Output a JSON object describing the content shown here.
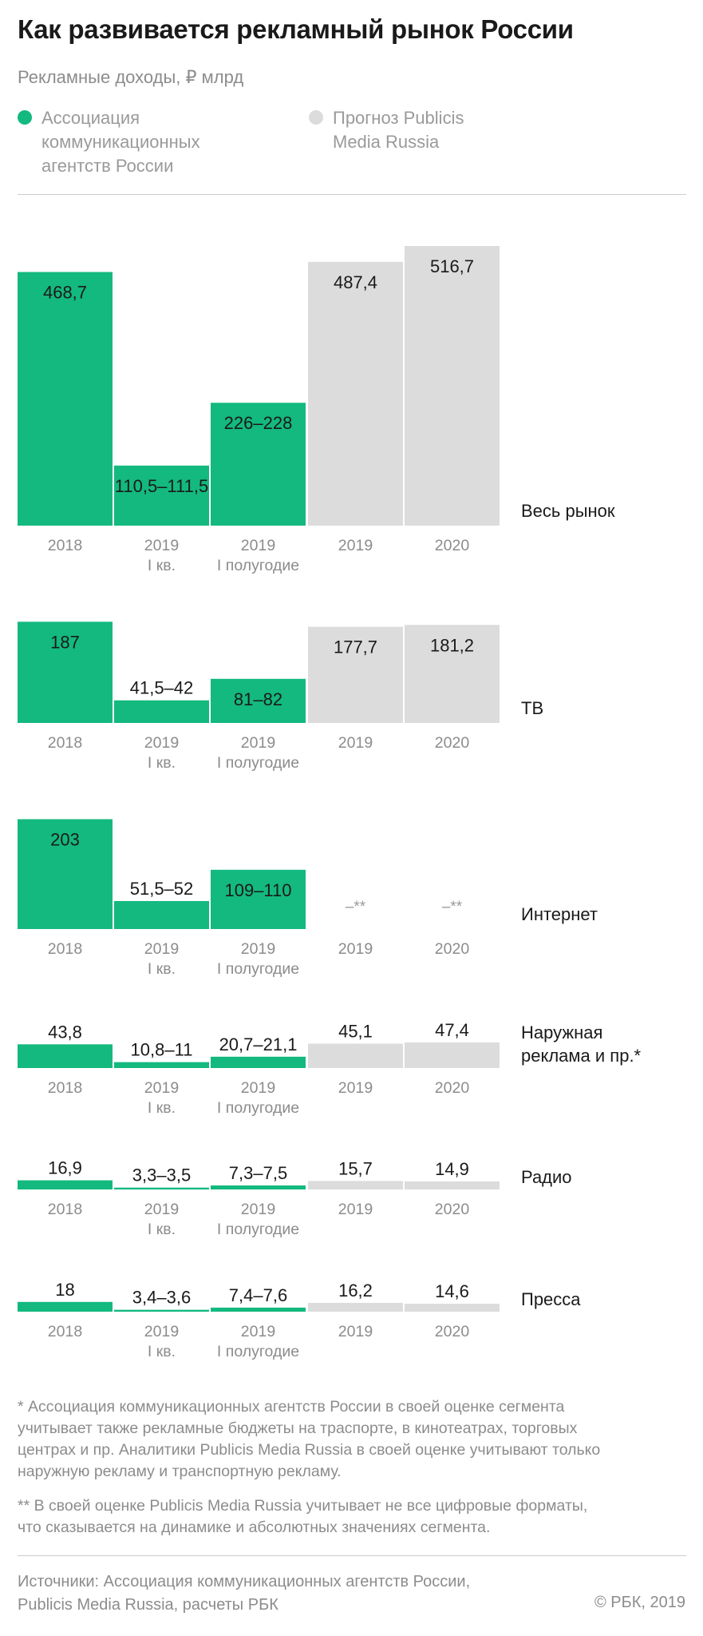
{
  "title": "Как развивается рекламный рынок России",
  "subtitle": "Рекламные доходы, ₽ млрд",
  "legend": [
    {
      "label": "Ассоциация\nкоммуникационных\nагентств России",
      "color": "#13b97f"
    },
    {
      "label": "Прогноз Publicis\nMedia Russia",
      "color": "#dcdcdc"
    }
  ],
  "chart_data": [
    {
      "type": "bar",
      "title": "Весь рынок",
      "categories": [
        "2018",
        "2019 I кв.",
        "2019 I полугодие",
        "2019",
        "2020"
      ],
      "tick_labels": [
        [
          "2018"
        ],
        [
          "2019",
          "I кв."
        ],
        [
          "2019",
          "I полугодие"
        ],
        [
          "2019"
        ],
        [
          "2020"
        ]
      ],
      "values": [
        468.7,
        111,
        227,
        487.4,
        516.7
      ],
      "value_labels": [
        "468,7",
        "110,5–111,5",
        "226–228",
        "487,4",
        "516,7"
      ],
      "series_source": [
        "АКАР",
        "АКАР",
        "АКАР",
        "Publicis",
        "Publicis"
      ]
    },
    {
      "type": "bar",
      "title": "ТВ",
      "categories": [
        "2018",
        "2019 I кв.",
        "2019 I полугодие",
        "2019",
        "2020"
      ],
      "tick_labels": [
        [
          "2018"
        ],
        [
          "2019",
          "I кв."
        ],
        [
          "2019",
          "I полугодие"
        ],
        [
          "2019"
        ],
        [
          "2020"
        ]
      ],
      "values": [
        187,
        41.75,
        81.5,
        177.7,
        181.2
      ],
      "value_labels": [
        "187",
        "41,5–42",
        "81–82",
        "177,7",
        "181,2"
      ],
      "series_source": [
        "АКАР",
        "АКАР",
        "АКАР",
        "Publicis",
        "Publicis"
      ]
    },
    {
      "type": "bar",
      "title": "Интернет",
      "categories": [
        "2018",
        "2019 I кв.",
        "2019 I полугодие",
        "2019",
        "2020"
      ],
      "tick_labels": [
        [
          "2018"
        ],
        [
          "2019",
          "I кв."
        ],
        [
          "2019",
          "I полугодие"
        ],
        [
          "2019"
        ],
        [
          "2020"
        ]
      ],
      "values": [
        203,
        51.75,
        109.5,
        null,
        null
      ],
      "value_labels": [
        "203",
        "51,5–52",
        "109–110",
        "–**",
        "–**"
      ],
      "series_source": [
        "АКАР",
        "АКАР",
        "АКАР",
        "Publicis",
        "Publicis"
      ]
    },
    {
      "type": "bar",
      "title": "Наружная\nреклама и пр.*",
      "categories": [
        "2018",
        "2019 I кв.",
        "2019 I полугодие",
        "2019",
        "2020"
      ],
      "tick_labels": [
        [
          "2018"
        ],
        [
          "2019",
          "I кв."
        ],
        [
          "2019",
          "I полугодие"
        ],
        [
          "2019"
        ],
        [
          "2020"
        ]
      ],
      "values": [
        43.8,
        10.9,
        20.9,
        45.1,
        47.4
      ],
      "value_labels": [
        "43,8",
        "10,8–11",
        "20,7–21,1",
        "45,1",
        "47,4"
      ],
      "series_source": [
        "АКАР",
        "АКАР",
        "АКАР",
        "Publicis",
        "Publicis"
      ]
    },
    {
      "type": "bar",
      "title": "Радио",
      "categories": [
        "2018",
        "2019 I кв.",
        "2019 I полугодие",
        "2019",
        "2020"
      ],
      "tick_labels": [
        [
          "2018"
        ],
        [
          "2019",
          "I кв."
        ],
        [
          "2019",
          "I полугодие"
        ],
        [
          "2019"
        ],
        [
          "2020"
        ]
      ],
      "values": [
        16.9,
        3.4,
        7.4,
        15.7,
        14.9
      ],
      "value_labels": [
        "16,9",
        "3,3–3,5",
        "7,3–7,5",
        "15,7",
        "14,9"
      ],
      "series_source": [
        "АКАР",
        "АКАР",
        "АКАР",
        "Publicis",
        "Publicis"
      ]
    },
    {
      "type": "bar",
      "title": "Пресса",
      "categories": [
        "2018",
        "2019 I кв.",
        "2019 I полугодие",
        "2019",
        "2020"
      ],
      "tick_labels": [
        [
          "2018"
        ],
        [
          "2019",
          "I кв."
        ],
        [
          "2019",
          "I полугодие"
        ],
        [
          "2019"
        ],
        [
          "2020"
        ]
      ],
      "values": [
        18,
        3.5,
        7.5,
        16.2,
        14.6
      ],
      "value_labels": [
        "18",
        "3,4–3,6",
        "7,4–7,6",
        "16,2",
        "14,6"
      ],
      "series_source": [
        "АКАР",
        "АКАР",
        "АКАР",
        "Publicis",
        "Publicis"
      ]
    }
  ],
  "notes": [
    "* Ассоциация коммуникационных агентств России в своей оценке сегмента\nучитывает также рекламные бюджеты на траспорте, в кинотеатрах, торговых\nцентрах и пр. Аналитики Publicis Media Russia в своей оценке учитывают только\nнаружную рекламу и транспортную рекламу.",
    "** В своей оценке Publicis Media Russia учитывает не все цифровые форматы,\nчто сказывается на динамике и абсолютных значениях сегмента."
  ],
  "sources": "Источники: Ассоциация коммуникационных агентств России,\nPublicis Media Russia, расчеты РБК",
  "copyright": "© РБК, 2019",
  "colors": {
    "akar": "#13b97f",
    "publicis": "#dcdcdc",
    "axis_text": "#8c8c8c"
  }
}
